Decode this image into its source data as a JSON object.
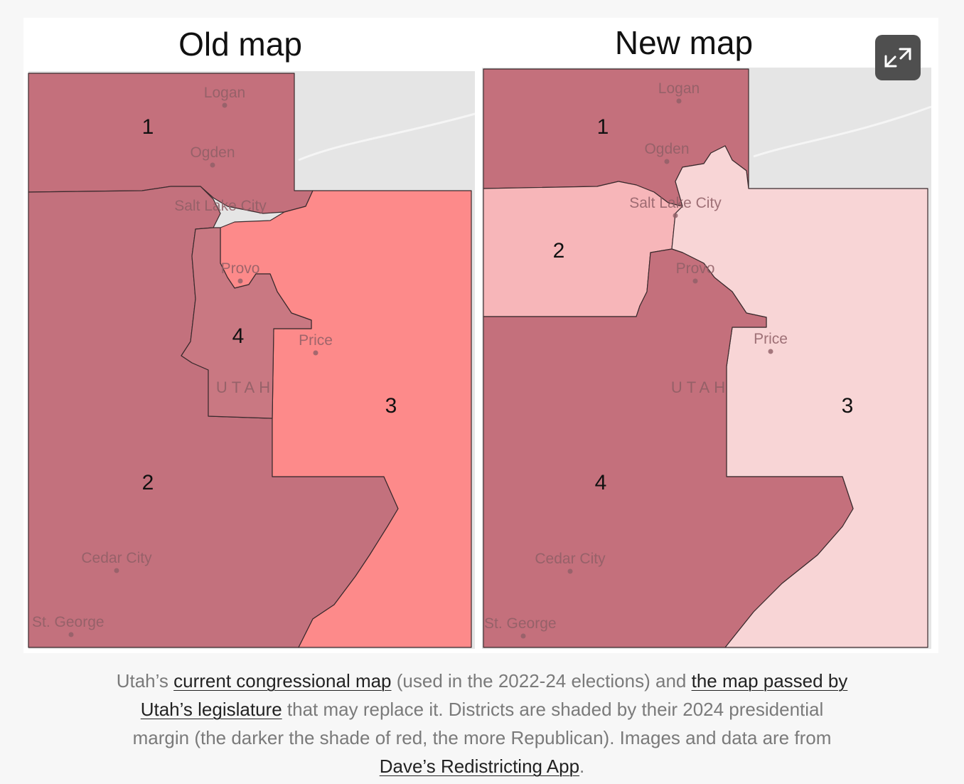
{
  "maps": [
    {
      "title": "Old map",
      "state": "UTAH",
      "cities": [
        "Logan",
        "Ogden",
        "Salt Lake City",
        "Provo",
        "Price",
        "Cedar City",
        "St. George"
      ],
      "districts": [
        {
          "label": "1",
          "color": "#c4707c"
        },
        {
          "label": "2",
          "color": "#c3717d"
        },
        {
          "label": "3",
          "color": "#fd8a8a"
        },
        {
          "label": "4",
          "color": "#c97882"
        }
      ]
    },
    {
      "title": "New map",
      "state": "UTAH",
      "cities": [
        "Logan",
        "Ogden",
        "Salt Lake City",
        "Provo",
        "Price",
        "Cedar City",
        "St. George"
      ],
      "districts": [
        {
          "label": "1",
          "color": "#c4707c"
        },
        {
          "label": "2",
          "color": "#f7b6b9"
        },
        {
          "label": "3",
          "color": "#f8d5d6"
        },
        {
          "label": "4",
          "color": "#c4707c"
        }
      ]
    }
  ],
  "caption": {
    "segments": [
      {
        "text": "Utah’s ",
        "link": false
      },
      {
        "text": "current congressional map",
        "link": true
      },
      {
        "text": " (used in the 2022-24 elections) and ",
        "link": false
      },
      {
        "text": "the map passed by Utah’s legislature",
        "link": true
      },
      {
        "text": " that may replace it. Districts are shaded by their 2024 presidential margin (the darker the shade of red, the more Republican). Images and data are from ",
        "link": false
      },
      {
        "text": "Dave’s Redistricting App",
        "link": true
      },
      {
        "text": ".",
        "link": false
      }
    ]
  }
}
